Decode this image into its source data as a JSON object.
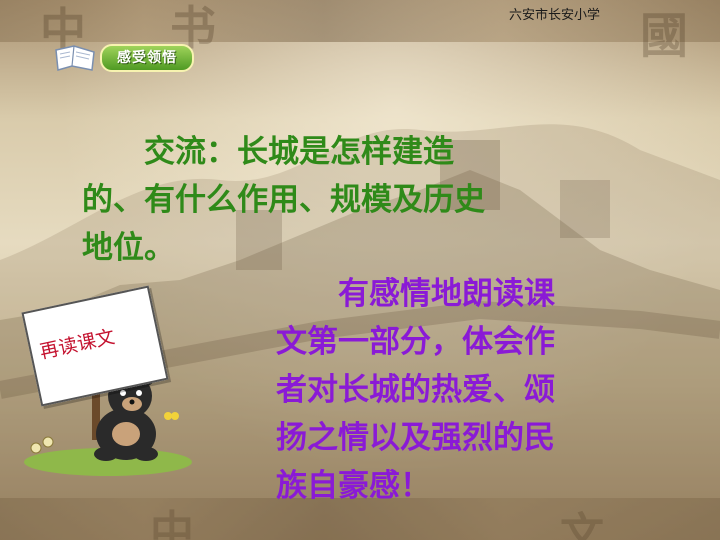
{
  "header": {
    "school_name": "六安市长安小学",
    "section_badge": "感受领悟"
  },
  "content": {
    "green_lines": [
      "　　交流：长城是怎样建造",
      "的、有什么作用、规模及历史",
      "地位。"
    ],
    "purple_lines": [
      "　　有感情地朗读课",
      "文第一部分，体会作",
      "者对长城的热爱、颂",
      "扬之情以及强烈的民",
      "族自豪感！"
    ]
  },
  "sign": {
    "label": "再读课文"
  },
  "colors": {
    "green_text": "#2f8a19",
    "purple_text": "#8a1ad6",
    "badge_green": "#4f9a23",
    "sign_text": "#c4122f"
  }
}
